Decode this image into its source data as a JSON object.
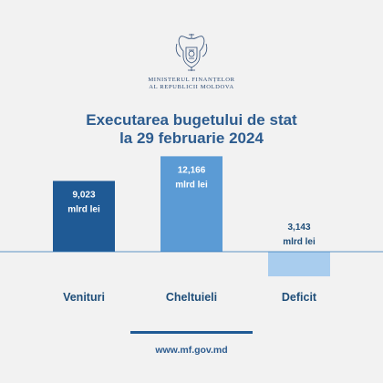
{
  "header": {
    "ministry_line1": "MINISTERUL FINANȚELOR",
    "ministry_line2": "AL REPUBLICII MOLDOVA",
    "title_line1": "Executarea bugetului de stat",
    "title_line2": "la 29 februarie 2024"
  },
  "logo": {
    "icon": "coat-of-arms-icon"
  },
  "chart_data": {
    "type": "bar",
    "categories": [
      "Venituri",
      "Cheltuieli",
      "Deficit"
    ],
    "values": [
      9.023,
      12.166,
      -3.143
    ],
    "value_labels": [
      "9,023",
      "12,166",
      "3,143"
    ],
    "unit": "mlrd lei",
    "colors": [
      "#1f5a95",
      "#5b9bd5",
      "#a9cdee"
    ],
    "axis_color": "#2e74b5",
    "grid": false,
    "legend": "none"
  },
  "footer": {
    "website": "www.mf.gov.md"
  }
}
